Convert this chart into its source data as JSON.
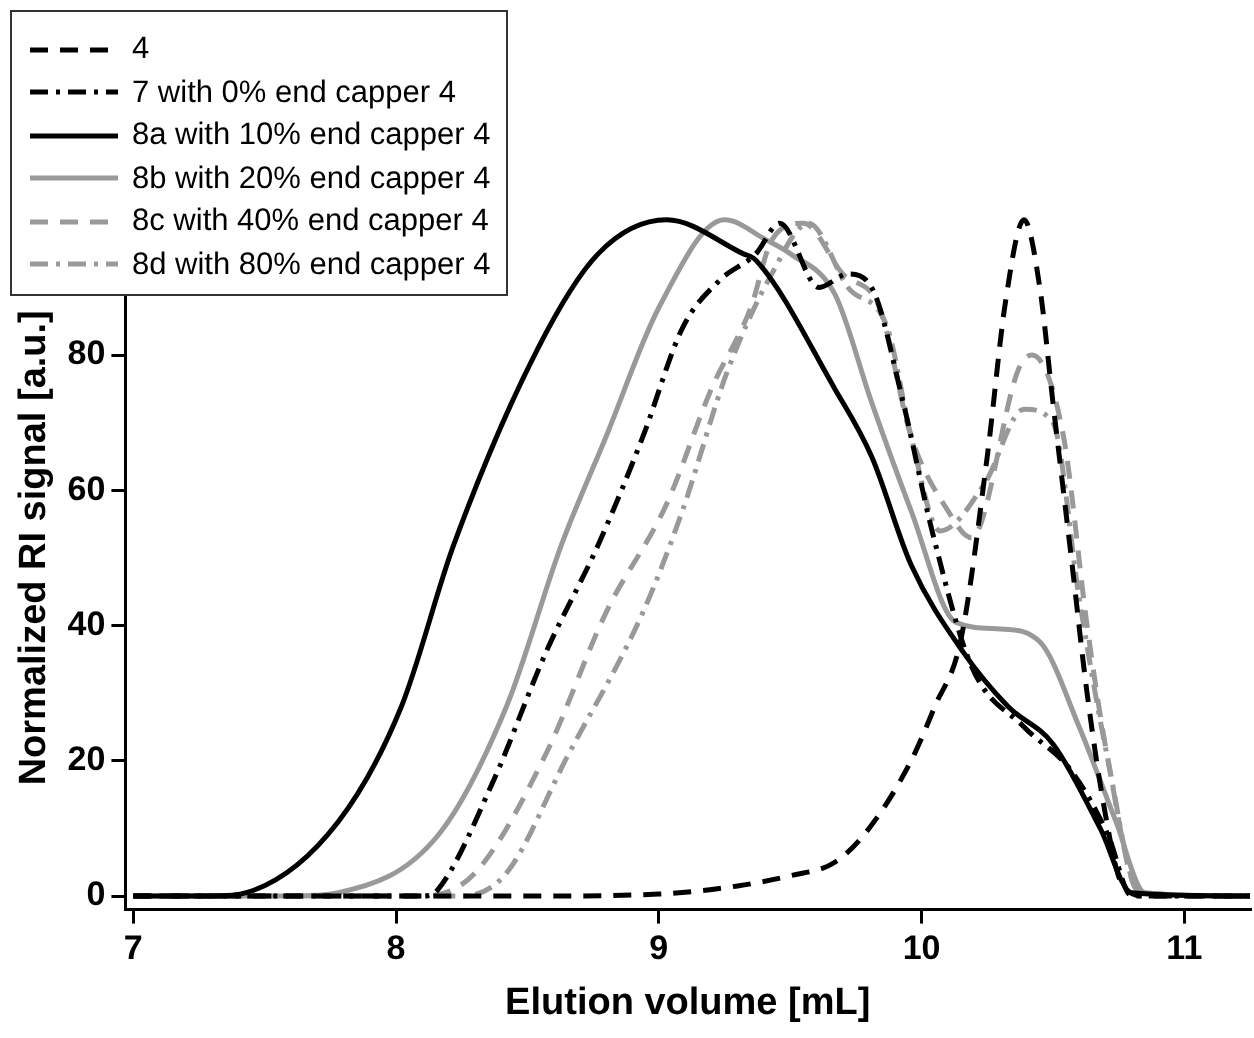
{
  "chart_data": {
    "type": "line",
    "xlabel": "Elution volume [mL]",
    "ylabel": "Normalized RI signal [a.u.]",
    "xlim": [
      6.97,
      11.25
    ],
    "xticks": [
      7,
      8,
      9,
      10,
      11
    ],
    "ylim": [
      -2,
      105
    ],
    "yticks": [
      0,
      20,
      40,
      60,
      80
    ],
    "grid": false,
    "legend": "top left",
    "marker": "none",
    "series": [
      {
        "name": "4",
        "color": "#000000",
        "line_style": "dashed",
        "x": [
          7,
          8.5,
          9.0,
          9.3,
          9.5,
          9.67,
          9.8,
          9.96,
          10.05,
          10.15,
          10.25,
          10.32,
          10.39,
          10.45,
          10.5,
          10.57,
          10.63,
          10.7,
          10.76,
          10.85,
          11.25
        ],
        "values": [
          0,
          0,
          0.3,
          1.5,
          3,
          5,
          10,
          20,
          28,
          38,
          65,
          88,
          100,
          90,
          73,
          50,
          30,
          12,
          2,
          0,
          0
        ]
      },
      {
        "name": "7 with 0% end capper 4",
        "color": "#000000",
        "line_style": "dashdot",
        "x": [
          7,
          8.1,
          8.16,
          8.37,
          8.57,
          8.77,
          8.94,
          9.09,
          9.23,
          9.37,
          9.46,
          9.61,
          9.72,
          9.81,
          9.93,
          10.04,
          10.19,
          10.39,
          10.57,
          10.71,
          10.8,
          11.25
        ],
        "values": [
          0,
          0,
          1,
          17,
          36,
          52,
          68,
          84,
          91,
          95,
          99.5,
          90,
          92,
          90,
          73,
          54,
          34,
          25,
          18.5,
          9,
          0,
          0
        ]
      },
      {
        "name": "8a with 10% end capper 4",
        "color": "#000000",
        "line_style": "solid",
        "x": [
          7,
          7.3,
          7.43,
          7.78,
          8.02,
          8.22,
          8.54,
          8.77,
          9.03,
          9.32,
          9.37,
          9.67,
          9.81,
          9.96,
          10.16,
          10.33,
          10.5,
          10.68,
          10.8,
          11.25
        ],
        "values": [
          0,
          0,
          0.5,
          11,
          28,
          52,
          81,
          95,
          100,
          95,
          94,
          75,
          65,
          49,
          36,
          28,
          22.5,
          10,
          0.5,
          0
        ]
      },
      {
        "name": "8b with 20% end capper 4",
        "color": "#999999",
        "line_style": "solid",
        "x": [
          7,
          7.6,
          7.78,
          8.16,
          8.42,
          8.63,
          8.8,
          9.0,
          9.25,
          9.41,
          9.5,
          9.67,
          9.81,
          9.96,
          10.13,
          10.3,
          10.45,
          10.6,
          10.74,
          10.85,
          11.25
        ],
        "values": [
          0,
          0,
          0.5,
          9,
          28,
          52,
          68,
          87,
          100,
          97,
          95,
          89,
          73,
          57,
          40.5,
          39.5,
          37.6,
          25,
          11,
          0.5,
          0
        ]
      },
      {
        "name": "8c with 40% end capper 4",
        "color": "#999999",
        "line_style": "dashed",
        "x": [
          7,
          8.1,
          8.3,
          8.57,
          8.8,
          9.03,
          9.2,
          9.35,
          9.43,
          9.55,
          9.7,
          9.84,
          9.96,
          10.1,
          10.19,
          10.37,
          10.42,
          10.54,
          10.63,
          10.71,
          10.83,
          11.25
        ],
        "values": [
          0,
          0,
          3.4,
          21,
          42,
          58,
          75,
          87,
          97,
          99.5,
          92,
          87,
          68,
          57,
          53,
          78,
          80,
          68,
          40,
          20,
          0.5,
          0
        ]
      },
      {
        "name": "8d with 80% end capper 4",
        "color": "#999999",
        "line_style": "dashdot",
        "x": [
          7,
          8.25,
          8.42,
          8.65,
          8.94,
          9.09,
          9.26,
          9.43,
          9.57,
          9.72,
          9.87,
          9.96,
          10.07,
          10.24,
          10.39,
          10.5,
          10.6,
          10.71,
          10.83,
          11.25
        ],
        "values": [
          0,
          0,
          3.4,
          20.5,
          42,
          57,
          77.5,
          92,
          99.5,
          90,
          84,
          68,
          54,
          61,
          72,
          70,
          44,
          20,
          0.5,
          0
        ]
      }
    ]
  }
}
